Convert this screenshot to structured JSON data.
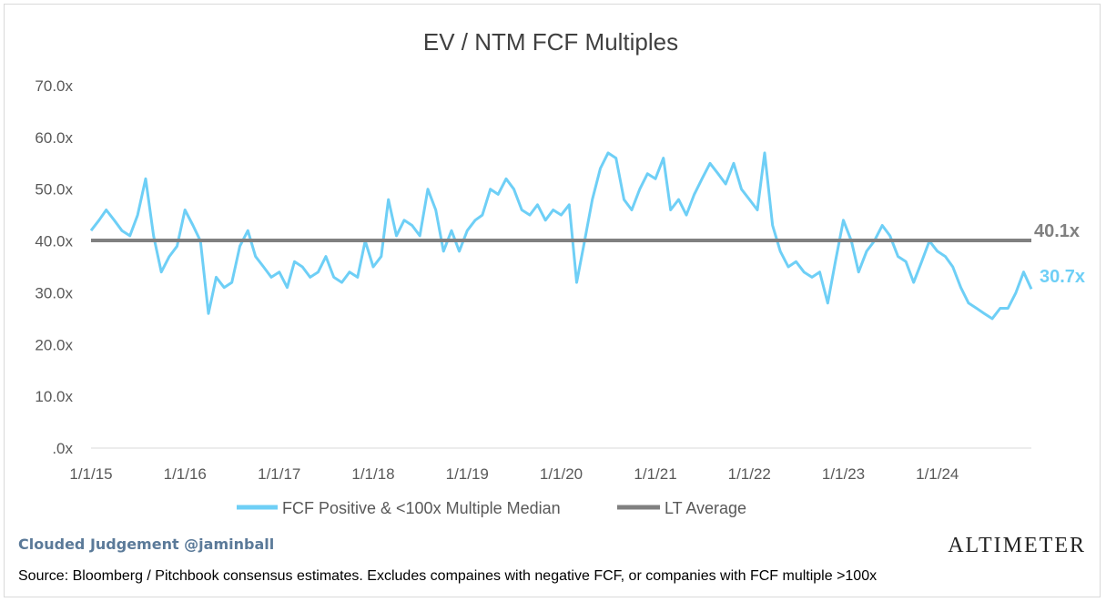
{
  "chart_data": {
    "type": "line",
    "title": "EV / NTM FCF Multiples",
    "ylim": [
      0,
      70
    ],
    "yticks": [
      ".0x",
      "10.0x",
      "20.0x",
      "30.0x",
      "40.0x",
      "50.0x",
      "60.0x",
      "70.0x"
    ],
    "ytick_values": [
      0,
      10,
      20,
      30,
      40,
      50,
      60,
      70
    ],
    "xticks": [
      "1/1/15",
      "1/1/16",
      "1/1/17",
      "1/1/18",
      "1/1/19",
      "1/1/20",
      "1/1/21",
      "1/1/22",
      "1/1/23",
      "1/1/24"
    ],
    "xlim": [
      "2015-01-01",
      "2024-12-31"
    ],
    "grid": false,
    "legend_position": "bottom",
    "series": [
      {
        "name": "FCF Positive & <100x Multiple Median",
        "color": "#6ecff6",
        "end_label": "30.7x",
        "points": [
          [
            "2015-01-01",
            42
          ],
          [
            "2015-02-01",
            44
          ],
          [
            "2015-03-01",
            46
          ],
          [
            "2015-04-01",
            44
          ],
          [
            "2015-05-01",
            42
          ],
          [
            "2015-06-01",
            41
          ],
          [
            "2015-07-01",
            45
          ],
          [
            "2015-08-01",
            52
          ],
          [
            "2015-09-01",
            41
          ],
          [
            "2015-10-01",
            34
          ],
          [
            "2015-11-01",
            37
          ],
          [
            "2015-12-01",
            39
          ],
          [
            "2016-01-01",
            46
          ],
          [
            "2016-02-01",
            43
          ],
          [
            "2016-03-01",
            40
          ],
          [
            "2016-04-01",
            26
          ],
          [
            "2016-05-01",
            33
          ],
          [
            "2016-06-01",
            31
          ],
          [
            "2016-07-01",
            32
          ],
          [
            "2016-08-01",
            39
          ],
          [
            "2016-09-01",
            42
          ],
          [
            "2016-10-01",
            37
          ],
          [
            "2016-11-01",
            35
          ],
          [
            "2016-12-01",
            33
          ],
          [
            "2017-01-01",
            34
          ],
          [
            "2017-02-01",
            31
          ],
          [
            "2017-03-01",
            36
          ],
          [
            "2017-04-01",
            35
          ],
          [
            "2017-05-01",
            33
          ],
          [
            "2017-06-01",
            34
          ],
          [
            "2017-07-01",
            37
          ],
          [
            "2017-08-01",
            33
          ],
          [
            "2017-09-01",
            32
          ],
          [
            "2017-10-01",
            34
          ],
          [
            "2017-11-01",
            33
          ],
          [
            "2017-12-01",
            40
          ],
          [
            "2018-01-01",
            35
          ],
          [
            "2018-02-01",
            37
          ],
          [
            "2018-03-01",
            48
          ],
          [
            "2018-04-01",
            41
          ],
          [
            "2018-05-01",
            44
          ],
          [
            "2018-06-01",
            43
          ],
          [
            "2018-07-01",
            41
          ],
          [
            "2018-08-01",
            50
          ],
          [
            "2018-09-01",
            46
          ],
          [
            "2018-10-01",
            38
          ],
          [
            "2018-11-01",
            42
          ],
          [
            "2018-12-01",
            38
          ],
          [
            "2019-01-01",
            42
          ],
          [
            "2019-02-01",
            44
          ],
          [
            "2019-03-01",
            45
          ],
          [
            "2019-04-01",
            50
          ],
          [
            "2019-05-01",
            49
          ],
          [
            "2019-06-01",
            52
          ],
          [
            "2019-07-01",
            50
          ],
          [
            "2019-08-01",
            46
          ],
          [
            "2019-09-01",
            45
          ],
          [
            "2019-10-01",
            47
          ],
          [
            "2019-11-01",
            44
          ],
          [
            "2019-12-01",
            46
          ],
          [
            "2020-01-01",
            45
          ],
          [
            "2020-02-01",
            47
          ],
          [
            "2020-03-01",
            32
          ],
          [
            "2020-04-01",
            40
          ],
          [
            "2020-05-01",
            48
          ],
          [
            "2020-06-01",
            54
          ],
          [
            "2020-07-01",
            57
          ],
          [
            "2020-08-01",
            56
          ],
          [
            "2020-09-01",
            48
          ],
          [
            "2020-10-01",
            46
          ],
          [
            "2020-11-01",
            50
          ],
          [
            "2020-12-01",
            53
          ],
          [
            "2021-01-01",
            52
          ],
          [
            "2021-02-01",
            56
          ],
          [
            "2021-03-01",
            46
          ],
          [
            "2021-04-01",
            48
          ],
          [
            "2021-05-01",
            45
          ],
          [
            "2021-06-01",
            49
          ],
          [
            "2021-07-01",
            52
          ],
          [
            "2021-08-01",
            55
          ],
          [
            "2021-09-01",
            53
          ],
          [
            "2021-10-01",
            51
          ],
          [
            "2021-11-01",
            55
          ],
          [
            "2021-12-01",
            50
          ],
          [
            "2022-01-01",
            48
          ],
          [
            "2022-02-01",
            46
          ],
          [
            "2022-03-01",
            57
          ],
          [
            "2022-04-01",
            43
          ],
          [
            "2022-05-01",
            38
          ],
          [
            "2022-06-01",
            35
          ],
          [
            "2022-07-01",
            36
          ],
          [
            "2022-08-01",
            34
          ],
          [
            "2022-09-01",
            33
          ],
          [
            "2022-10-01",
            34
          ],
          [
            "2022-11-01",
            28
          ],
          [
            "2022-12-01",
            36
          ],
          [
            "2023-01-01",
            44
          ],
          [
            "2023-02-01",
            40
          ],
          [
            "2023-03-01",
            34
          ],
          [
            "2023-04-01",
            38
          ],
          [
            "2023-05-01",
            40
          ],
          [
            "2023-06-01",
            43
          ],
          [
            "2023-07-01",
            41
          ],
          [
            "2023-08-01",
            37
          ],
          [
            "2023-09-01",
            36
          ],
          [
            "2023-10-01",
            32
          ],
          [
            "2023-11-01",
            36
          ],
          [
            "2023-12-01",
            40
          ],
          [
            "2024-01-01",
            38
          ],
          [
            "2024-02-01",
            37
          ],
          [
            "2024-03-01",
            35
          ],
          [
            "2024-04-01",
            31
          ],
          [
            "2024-05-01",
            28
          ],
          [
            "2024-06-01",
            27
          ],
          [
            "2024-07-01",
            26
          ],
          [
            "2024-08-01",
            25
          ],
          [
            "2024-09-01",
            27
          ],
          [
            "2024-10-01",
            27
          ],
          [
            "2024-11-01",
            30
          ],
          [
            "2024-12-01",
            34
          ],
          [
            "2024-12-31",
            30.7
          ]
        ]
      },
      {
        "name": "LT Average",
        "color": "#808080",
        "value": 40.1,
        "end_label": "40.1x"
      }
    ]
  },
  "footer": {
    "credit": "Clouded Judgement @jaminball",
    "brand": "ALTIMETER",
    "source": "Source: Bloomberg / Pitchbook consensus estimates. Excludes compaines with negative FCF, or companies with FCF multiple >100x"
  }
}
